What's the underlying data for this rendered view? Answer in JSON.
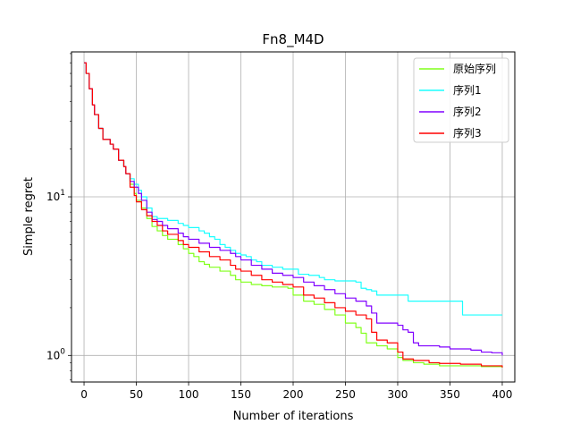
{
  "chart_data": {
    "type": "line",
    "title": "Fn8_M4D",
    "xlabel": "Number of iterations",
    "ylabel": "Simple regret",
    "xlim": [
      -12,
      412
    ],
    "ylim": [
      0.68,
      82
    ],
    "yscale": "log",
    "grid": true,
    "legend_position": "top-right",
    "x_ticks": [
      0,
      50,
      100,
      150,
      200,
      250,
      300,
      350,
      400
    ],
    "x_tick_labels": [
      "0",
      "50",
      "100",
      "150",
      "200",
      "250",
      "300",
      "350",
      "400"
    ],
    "y_ticks": [
      1,
      10
    ],
    "y_tick_labels": [
      "10^0",
      "10^1"
    ],
    "series": [
      {
        "name": "原始序列",
        "color": "#80ff1a",
        "points": [
          [
            0,
            70
          ],
          [
            2,
            60
          ],
          [
            5,
            48
          ],
          [
            8,
            38
          ],
          [
            10,
            33
          ],
          [
            14,
            27
          ],
          [
            18,
            23
          ],
          [
            25,
            21.5
          ],
          [
            28,
            20
          ],
          [
            33,
            17
          ],
          [
            38,
            15.5
          ],
          [
            40,
            14
          ],
          [
            44,
            12
          ],
          [
            48,
            10.5
          ],
          [
            50,
            9.5
          ],
          [
            55,
            8.5
          ],
          [
            60,
            7.3
          ],
          [
            65,
            6.5
          ],
          [
            70,
            6.1
          ],
          [
            75,
            5.7
          ],
          [
            80,
            5.4
          ],
          [
            90,
            5.0
          ],
          [
            95,
            4.7
          ],
          [
            100,
            4.4
          ],
          [
            105,
            4.2
          ],
          [
            110,
            3.9
          ],
          [
            115,
            3.75
          ],
          [
            120,
            3.6
          ],
          [
            130,
            3.4
          ],
          [
            140,
            3.2
          ],
          [
            145,
            3.0
          ],
          [
            150,
            2.9
          ],
          [
            160,
            2.8
          ],
          [
            170,
            2.75
          ],
          [
            180,
            2.7
          ],
          [
            195,
            2.65
          ],
          [
            200,
            2.4
          ],
          [
            210,
            2.2
          ],
          [
            220,
            2.1
          ],
          [
            230,
            1.95
          ],
          [
            240,
            1.8
          ],
          [
            250,
            1.6
          ],
          [
            260,
            1.5
          ],
          [
            265,
            1.38
          ],
          [
            270,
            1.2
          ],
          [
            280,
            1.15
          ],
          [
            290,
            1.1
          ],
          [
            300,
            0.97
          ],
          [
            305,
            0.93
          ],
          [
            315,
            0.9
          ],
          [
            325,
            0.88
          ],
          [
            340,
            0.86
          ],
          [
            360,
            0.86
          ],
          [
            380,
            0.85
          ],
          [
            400,
            0.84
          ]
        ]
      },
      {
        "name": "序列1",
        "color": "#1affff",
        "points": [
          [
            0,
            70
          ],
          [
            2,
            60
          ],
          [
            5,
            48
          ],
          [
            8,
            38
          ],
          [
            10,
            33
          ],
          [
            14,
            27
          ],
          [
            18,
            23
          ],
          [
            25,
            21.5
          ],
          [
            28,
            20
          ],
          [
            33,
            17
          ],
          [
            38,
            15.5
          ],
          [
            40,
            14
          ],
          [
            44,
            13
          ],
          [
            48,
            12
          ],
          [
            52,
            11
          ],
          [
            55,
            10
          ],
          [
            60,
            8.5
          ],
          [
            65,
            7.5
          ],
          [
            70,
            7.3
          ],
          [
            80,
            7.1
          ],
          [
            90,
            6.8
          ],
          [
            95,
            6.6
          ],
          [
            100,
            6.4
          ],
          [
            110,
            6.1
          ],
          [
            115,
            5.9
          ],
          [
            120,
            5.6
          ],
          [
            125,
            5.4
          ],
          [
            130,
            5.0
          ],
          [
            135,
            4.8
          ],
          [
            140,
            4.6
          ],
          [
            145,
            4.4
          ],
          [
            150,
            4.3
          ],
          [
            155,
            4.2
          ],
          [
            160,
            4.0
          ],
          [
            165,
            3.9
          ],
          [
            170,
            3.7
          ],
          [
            180,
            3.6
          ],
          [
            190,
            3.5
          ],
          [
            200,
            3.5
          ],
          [
            205,
            3.25
          ],
          [
            215,
            3.2
          ],
          [
            225,
            3.1
          ],
          [
            230,
            3.0
          ],
          [
            240,
            2.95
          ],
          [
            250,
            2.95
          ],
          [
            260,
            2.9
          ],
          [
            265,
            2.65
          ],
          [
            270,
            2.6
          ],
          [
            275,
            2.55
          ],
          [
            280,
            2.4
          ],
          [
            300,
            2.4
          ],
          [
            310,
            2.2
          ],
          [
            320,
            2.2
          ],
          [
            345,
            2.2
          ],
          [
            358,
            2.2
          ],
          [
            362,
            1.8
          ],
          [
            380,
            1.8
          ],
          [
            400,
            1.8
          ]
        ]
      },
      {
        "name": "序列2",
        "color": "#8000ff",
        "points": [
          [
            0,
            70
          ],
          [
            2,
            60
          ],
          [
            5,
            48
          ],
          [
            8,
            38
          ],
          [
            10,
            33
          ],
          [
            14,
            27
          ],
          [
            18,
            23
          ],
          [
            25,
            21.5
          ],
          [
            28,
            20
          ],
          [
            33,
            17
          ],
          [
            38,
            15.5
          ],
          [
            40,
            14
          ],
          [
            44,
            12.5
          ],
          [
            48,
            11.5
          ],
          [
            52,
            10.5
          ],
          [
            55,
            9.5
          ],
          [
            60,
            8.0
          ],
          [
            65,
            7.2
          ],
          [
            70,
            7.0
          ],
          [
            75,
            6.6
          ],
          [
            80,
            6.3
          ],
          [
            90,
            5.9
          ],
          [
            95,
            5.6
          ],
          [
            100,
            5.4
          ],
          [
            110,
            5.1
          ],
          [
            120,
            4.8
          ],
          [
            130,
            4.6
          ],
          [
            140,
            4.4
          ],
          [
            145,
            4.2
          ],
          [
            150,
            4.0
          ],
          [
            160,
            3.7
          ],
          [
            170,
            3.5
          ],
          [
            180,
            3.3
          ],
          [
            190,
            3.2
          ],
          [
            200,
            3.1
          ],
          [
            210,
            2.9
          ],
          [
            220,
            2.75
          ],
          [
            230,
            2.6
          ],
          [
            240,
            2.45
          ],
          [
            250,
            2.3
          ],
          [
            260,
            2.2
          ],
          [
            270,
            2.05
          ],
          [
            275,
            1.85
          ],
          [
            280,
            1.6
          ],
          [
            300,
            1.55
          ],
          [
            305,
            1.45
          ],
          [
            310,
            1.4
          ],
          [
            315,
            1.2
          ],
          [
            320,
            1.15
          ],
          [
            340,
            1.13
          ],
          [
            350,
            1.1
          ],
          [
            370,
            1.08
          ],
          [
            380,
            1.05
          ],
          [
            390,
            1.04
          ],
          [
            398,
            1.04
          ],
          [
            400,
            1.0
          ]
        ]
      },
      {
        "name": "序列3",
        "color": "#ff0000",
        "points": [
          [
            0,
            70
          ],
          [
            2,
            60
          ],
          [
            5,
            48
          ],
          [
            8,
            38
          ],
          [
            10,
            33
          ],
          [
            14,
            27
          ],
          [
            18,
            23
          ],
          [
            25,
            21.5
          ],
          [
            28,
            20
          ],
          [
            33,
            17
          ],
          [
            38,
            15.5
          ],
          [
            40,
            14
          ],
          [
            44,
            11.5
          ],
          [
            48,
            10.2
          ],
          [
            50,
            9.3
          ],
          [
            55,
            8.3
          ],
          [
            60,
            7.6
          ],
          [
            65,
            7.0
          ],
          [
            70,
            6.6
          ],
          [
            75,
            6.1
          ],
          [
            80,
            5.8
          ],
          [
            90,
            5.3
          ],
          [
            95,
            5.0
          ],
          [
            100,
            4.8
          ],
          [
            110,
            4.5
          ],
          [
            120,
            4.2
          ],
          [
            130,
            4.0
          ],
          [
            140,
            3.7
          ],
          [
            145,
            3.5
          ],
          [
            150,
            3.4
          ],
          [
            160,
            3.2
          ],
          [
            170,
            3.0
          ],
          [
            180,
            2.9
          ],
          [
            190,
            2.8
          ],
          [
            200,
            2.7
          ],
          [
            210,
            2.4
          ],
          [
            220,
            2.3
          ],
          [
            230,
            2.15
          ],
          [
            240,
            2.0
          ],
          [
            250,
            1.9
          ],
          [
            260,
            1.8
          ],
          [
            270,
            1.7
          ],
          [
            275,
            1.4
          ],
          [
            280,
            1.25
          ],
          [
            290,
            1.2
          ],
          [
            300,
            1.05
          ],
          [
            305,
            0.95
          ],
          [
            315,
            0.93
          ],
          [
            330,
            0.9
          ],
          [
            340,
            0.89
          ],
          [
            360,
            0.88
          ],
          [
            380,
            0.86
          ],
          [
            400,
            0.84
          ]
        ]
      }
    ]
  }
}
